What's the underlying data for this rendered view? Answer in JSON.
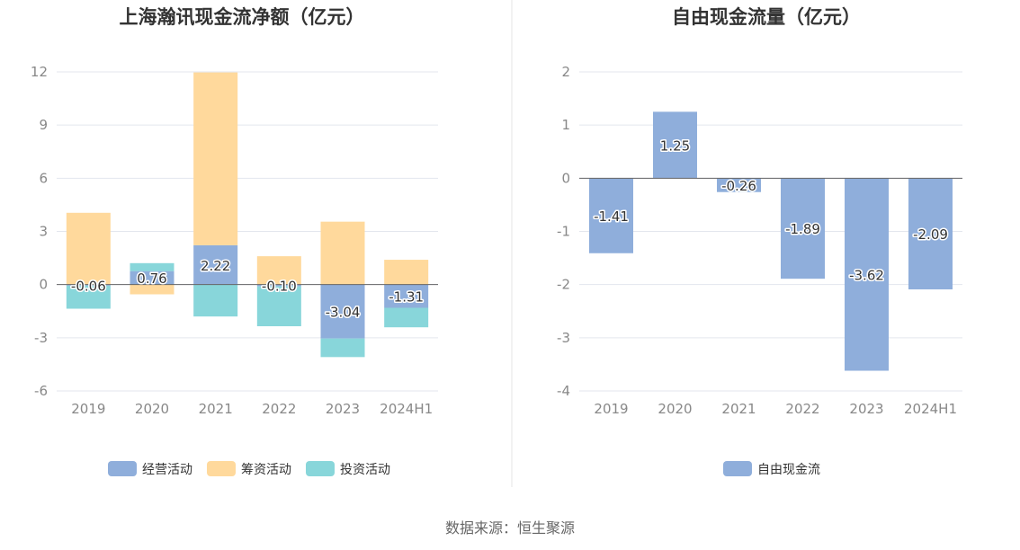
{
  "source": "数据来源：恒生聚源",
  "chart_data": [
    {
      "type": "bar",
      "stacked": true,
      "title": "上海瀚讯现金流净额（亿元）",
      "categories": [
        "2019",
        "2020",
        "2021",
        "2022",
        "2023",
        "2024H1"
      ],
      "ylim": [
        -6,
        12
      ],
      "yticks": [
        12,
        9,
        6,
        3,
        0,
        -3,
        -6
      ],
      "grid": true,
      "legend_position": "bottom",
      "series": [
        {
          "name": "经营活动",
          "color": "#8FAEDB",
          "values": [
            -0.06,
            0.76,
            2.22,
            -0.1,
            -3.04,
            -1.31
          ],
          "labeled": true
        },
        {
          "name": "筹资活动",
          "color": "#FFD99C",
          "values": [
            4.05,
            -0.55,
            9.75,
            1.6,
            3.55,
            1.4
          ],
          "labeled": false
        },
        {
          "name": "投资活动",
          "color": "#88D6DA",
          "values": [
            -1.3,
            0.45,
            -1.8,
            -2.25,
            -1.05,
            -1.1
          ],
          "labeled": false
        }
      ]
    },
    {
      "type": "bar",
      "title": "自由现金流量（亿元）",
      "categories": [
        "2019",
        "2020",
        "2021",
        "2022",
        "2023",
        "2024H1"
      ],
      "ylim": [
        -4,
        2
      ],
      "yticks": [
        2,
        1,
        0,
        -1,
        -2,
        -3,
        -4
      ],
      "grid": true,
      "legend_position": "bottom",
      "series": [
        {
          "name": "自由现金流",
          "color": "#8FAEDB",
          "values": [
            -1.41,
            1.25,
            -0.26,
            -1.89,
            -3.62,
            -2.09
          ],
          "labeled": true
        }
      ]
    }
  ]
}
